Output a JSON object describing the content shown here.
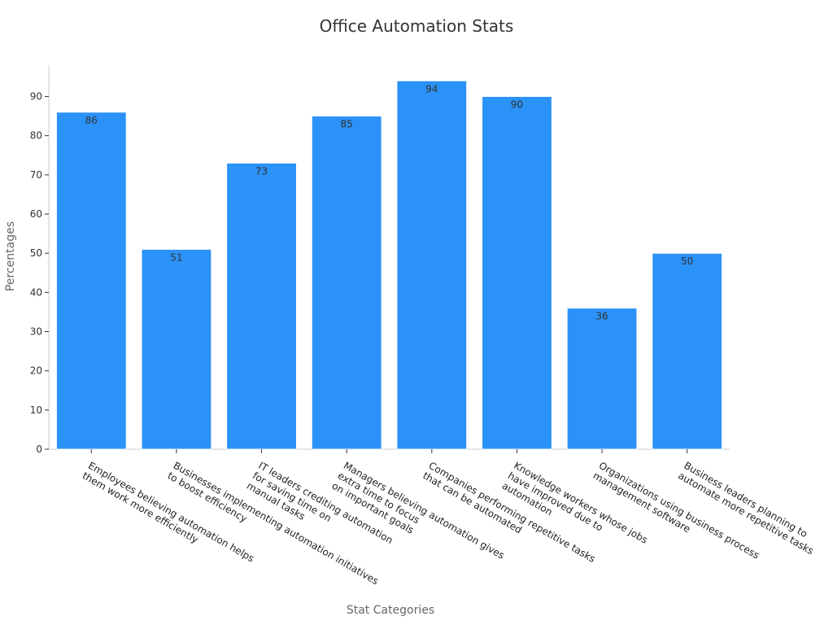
{
  "chart_data": {
    "type": "bar",
    "title": "Office Automation Stats",
    "xlabel": "Stat Categories",
    "ylabel": "Percentages",
    "ylim": [
      0,
      98
    ],
    "yticks": [
      0,
      10,
      20,
      30,
      40,
      50,
      60,
      70,
      80,
      90
    ],
    "grid": false,
    "categories": [
      [
        "Employees believing automation helps",
        "them work more efficiently"
      ],
      [
        "Businesses implementing automation initiatives",
        "to boost efficiency"
      ],
      [
        "IT leaders crediting automation",
        "for saving time on",
        "manual tasks"
      ],
      [
        "Managers believing automation gives",
        "extra time to focus",
        "on important goals"
      ],
      [
        "Companies performing repetitive tasks",
        "that can be automated"
      ],
      [
        "Knowledge workers whose jobs",
        "have improved due to",
        "automation"
      ],
      [
        "Organizations using business process",
        "management software"
      ],
      [
        "Business leaders planning to",
        "automate more repetitive tasks"
      ]
    ],
    "values": [
      86,
      51,
      73,
      85,
      94,
      90,
      36,
      50
    ],
    "bar_color": "#2b92f7",
    "bar_edge_color": "#ffffff"
  }
}
